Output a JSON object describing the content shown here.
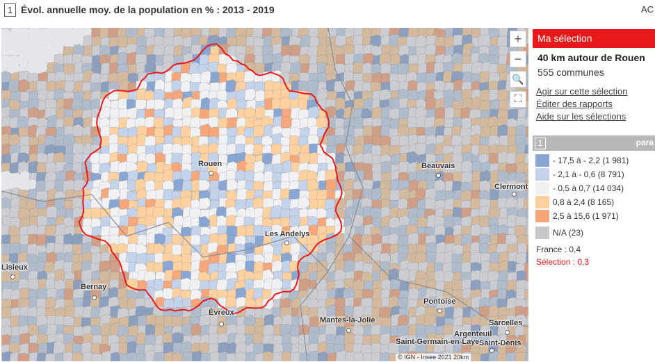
{
  "header": {
    "map_number": "1",
    "title": "Évol. annuelle moy. de la population en % : 2013 - 2019",
    "right_text": "AC"
  },
  "controls": {
    "zoom_in": "+",
    "zoom_out": "−",
    "search": "🔍",
    "fullscreen": "⛶"
  },
  "cities": [
    {
      "name": "Rouen",
      "dot": true
    },
    {
      "name": "Les Andelys",
      "dot": true
    },
    {
      "name": "Beauvais",
      "dot": true
    },
    {
      "name": "Clermont",
      "dot": true
    },
    {
      "name": "Lisieux",
      "dot": true
    },
    {
      "name": "Bernay",
      "dot": true
    },
    {
      "name": "Évreux",
      "dot": true
    },
    {
      "name": "Pontoise",
      "dot": true
    },
    {
      "name": "Mantes-la-Jolie",
      "dot": true
    },
    {
      "name": "Argenteuil",
      "dot": true
    },
    {
      "name": "Sarcelles",
      "dot": true
    },
    {
      "name": "Saint-Germain-en-Laye",
      "dot": false
    },
    {
      "name": "Saint-Denis",
      "dot": true
    }
  ],
  "attribution": "© IGN - Insee 2021  20km",
  "selection": {
    "header": "Ma sélection",
    "title": "40 km autour de Rouen",
    "count": "555 communes",
    "links": [
      "Agir sur cette sélection",
      "Éditer des rapports",
      "Aide sur les sélections"
    ]
  },
  "legend": {
    "number": "1",
    "para_label": "para",
    "classes": [
      {
        "label": "- 17,5 à - 2,2 (1 981)",
        "color": "#8aa6d2"
      },
      {
        "label": "- 2,1 à - 0,6 (8 791)",
        "color": "#c4d3ea"
      },
      {
        "label": "- 0,5 à 0,7 (14 034)",
        "color": "#f1f1f3"
      },
      {
        "label": "0,8 à 2,4 (8 165)",
        "color": "#fdd1a0"
      },
      {
        "label": "2,5 à 15,6 (1 971)",
        "color": "#f6a77c"
      },
      {
        "label": "N/A (23)",
        "color": "#c8c8c8"
      }
    ],
    "france": "France : 0,4",
    "selection_value": "Sélection : 0,3"
  },
  "colors": {
    "accent": "#e8191a",
    "outside_tint": "#8f939b",
    "sea": "#e4e6ea"
  }
}
